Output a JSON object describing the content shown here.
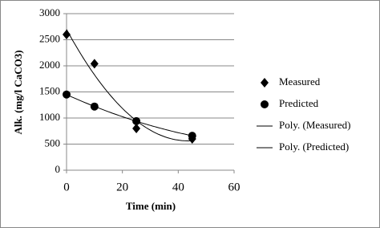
{
  "chart_data": {
    "type": "scatter",
    "x_label": "Time (min)",
    "y_label": "Alk. (mg/l CaCO3)",
    "xlim": [
      0,
      60
    ],
    "xticks": [
      0,
      20,
      40,
      60
    ],
    "ylim": [
      0,
      3000
    ],
    "yticks": [
      0,
      500,
      1000,
      1500,
      2000,
      2500,
      3000
    ],
    "grid": true,
    "legend": "right",
    "series": [
      {
        "name": "Measured",
        "color": "#000000",
        "marker": "diamond",
        "x": [
          0,
          10,
          25,
          45
        ],
        "values": [
          2600,
          2040,
          800,
          600
        ],
        "trendline": {
          "name": "Poly. (Measured)",
          "order": 2
        }
      },
      {
        "name": "Predicted",
        "color": "#000000",
        "marker": "circle",
        "x": [
          0,
          10,
          25,
          45
        ],
        "values": [
          1450,
          1220,
          940,
          660
        ],
        "trendline": {
          "name": "Poly. (Predicted)",
          "order": 2
        }
      }
    ]
  }
}
